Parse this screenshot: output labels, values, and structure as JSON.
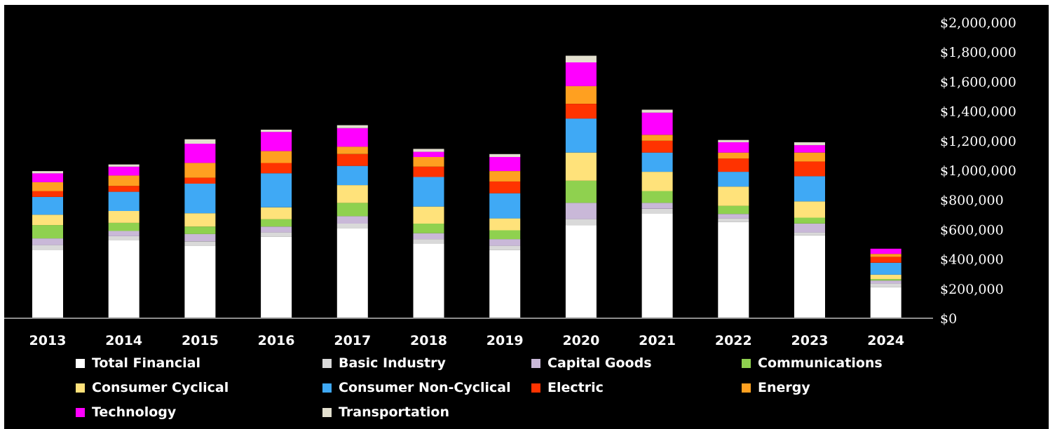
{
  "chart_data": {
    "type": "bar",
    "stacked": true,
    "categories": [
      "2013",
      "2014",
      "2015",
      "2016",
      "2017",
      "2018",
      "2019",
      "2020",
      "2021",
      "2022",
      "2023",
      "2024"
    ],
    "ylim": [
      0,
      2000000
    ],
    "yticks": [
      "$0",
      "$200,000",
      "$400,000",
      "$600,000",
      "$800,000",
      "$1,000,000",
      "$1,200,000",
      "$1,400,000",
      "$1,600,000",
      "$1,800,000",
      "$2,000,000"
    ],
    "ytick_values": [
      0,
      200000,
      400000,
      600000,
      800000,
      1000000,
      1200000,
      1400000,
      1600000,
      1800000,
      2000000
    ],
    "y_axis_position": "right",
    "legend_position": "bottom",
    "series": [
      {
        "name": "Total Financial",
        "color": "#ffffff",
        "values": [
          460000,
          530000,
          490000,
          550000,
          610000,
          505000,
          460000,
          630000,
          710000,
          650000,
          560000,
          210000
        ]
      },
      {
        "name": "Basic Industry",
        "color": "#d9d9d9",
        "values": [
          35000,
          25000,
          30000,
          30000,
          30000,
          30000,
          30000,
          40000,
          30000,
          25000,
          20000,
          25000
        ]
      },
      {
        "name": "Capital Goods",
        "color": "#c9b8d8",
        "values": [
          45000,
          35000,
          50000,
          40000,
          50000,
          40000,
          45000,
          110000,
          40000,
          30000,
          60000,
          20000
        ]
      },
      {
        "name": "Communications",
        "color": "#8fd14f",
        "values": [
          90000,
          55000,
          50000,
          50000,
          90000,
          65000,
          60000,
          150000,
          80000,
          55000,
          40000,
          10000
        ]
      },
      {
        "name": "Consumer Cyclical",
        "color": "#ffe27a",
        "values": [
          70000,
          80000,
          90000,
          80000,
          120000,
          115000,
          80000,
          190000,
          130000,
          130000,
          110000,
          30000
        ]
      },
      {
        "name": "Consumer Non-Cyclical",
        "color": "#3fa9f5",
        "values": [
          120000,
          130000,
          200000,
          230000,
          130000,
          200000,
          170000,
          230000,
          130000,
          100000,
          170000,
          80000
        ]
      },
      {
        "name": "Electric",
        "color": "#ff3300",
        "values": [
          40000,
          40000,
          40000,
          70000,
          80000,
          70000,
          80000,
          100000,
          80000,
          90000,
          100000,
          40000
        ]
      },
      {
        "name": "Energy",
        "color": "#ffa020",
        "values": [
          60000,
          70000,
          100000,
          80000,
          50000,
          65000,
          70000,
          120000,
          40000,
          40000,
          60000,
          20000
        ]
      },
      {
        "name": "Technology",
        "color": "#ff00ff",
        "values": [
          60000,
          60000,
          130000,
          130000,
          125000,
          35000,
          95000,
          160000,
          150000,
          70000,
          50000,
          35000
        ]
      },
      {
        "name": "Transportation",
        "color": "#e3e0cf",
        "values": [
          15000,
          15000,
          30000,
          15000,
          20000,
          20000,
          20000,
          45000,
          20000,
          15000,
          20000,
          0
        ]
      }
    ]
  }
}
